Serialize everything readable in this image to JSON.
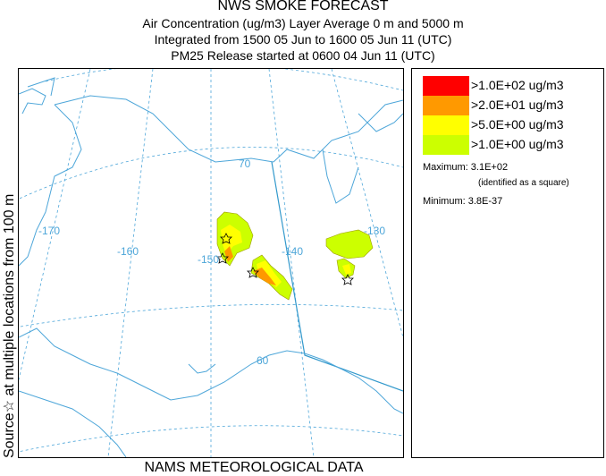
{
  "title": {
    "line1": "NWS SMOKE FORECAST",
    "line2": "Air Concentration (ug/m3) Layer Average    0 m and  5000 m",
    "line3": "Integrated from 1500 05 Jun to 1600 05 Jun 11 (UTC)",
    "line4": "PM25 Release started at 0600 04 Jun 11 (UTC)"
  },
  "side_label": "Source☆   at multiple locations    from   100 m",
  "bottom_label": "NAMS METEOROLOGICAL DATA",
  "legend": {
    "items": [
      {
        "label": ">1.0E+02 ug/m3",
        "color": "#ff0000"
      },
      {
        "label": ">2.0E+01 ug/m3",
        "color": "#ff9900"
      },
      {
        "label": ">5.0E+00 ug/m3",
        "color": "#ffff00"
      },
      {
        "label": ">1.0E+00 ug/m3",
        "color": "#ccff00"
      }
    ],
    "maximum": "Maximum: 3.1E+02",
    "maximum_note": "(identified as a square)",
    "minimum": "Minimum: 3.8E-37"
  },
  "map": {
    "grid_labels": {
      "lon_170": "-170",
      "lon_160": "-160",
      "lon_150": "-150",
      "lon_140": "-140",
      "lon_130": "-130",
      "lat_70": "70",
      "lat_60": "60"
    },
    "colors": {
      "grid": "#4da6d9",
      "coast": "#4da6d9",
      "border": "#3399cc"
    }
  }
}
